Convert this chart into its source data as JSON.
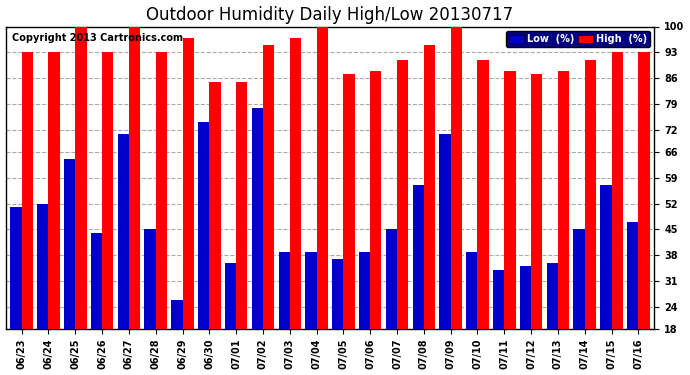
{
  "title": "Outdoor Humidity Daily High/Low 20130717",
  "copyright": "Copyright 2013 Cartronics.com",
  "categories": [
    "06/23",
    "06/24",
    "06/25",
    "06/26",
    "06/27",
    "06/28",
    "06/29",
    "06/30",
    "07/01",
    "07/02",
    "07/03",
    "07/04",
    "07/05",
    "07/06",
    "07/07",
    "07/08",
    "07/09",
    "07/10",
    "07/11",
    "07/12",
    "07/13",
    "07/14",
    "07/15",
    "07/16"
  ],
  "high_values": [
    93,
    93,
    100,
    93,
    100,
    93,
    97,
    85,
    85,
    95,
    97,
    100,
    87,
    88,
    91,
    95,
    100,
    91,
    88,
    87,
    88,
    91,
    93,
    93
  ],
  "low_values": [
    51,
    52,
    64,
    44,
    71,
    45,
    26,
    74,
    36,
    78,
    39,
    39,
    37,
    39,
    45,
    57,
    71,
    39,
    34,
    35,
    36,
    45,
    57,
    47
  ],
  "high_color": "#ff0000",
  "low_color": "#0000cc",
  "bg_color": "#ffffff",
  "grid_color": "#aaaaaa",
  "ymin": 18,
  "ymax": 100,
  "yticks": [
    18,
    24,
    31,
    38,
    45,
    52,
    59,
    66,
    72,
    79,
    86,
    93,
    100
  ],
  "bar_width": 0.42,
  "title_fontsize": 12,
  "tick_fontsize": 7,
  "copyright_fontsize": 7,
  "legend_low_label": "Low  (%)",
  "legend_high_label": "High  (%)"
}
